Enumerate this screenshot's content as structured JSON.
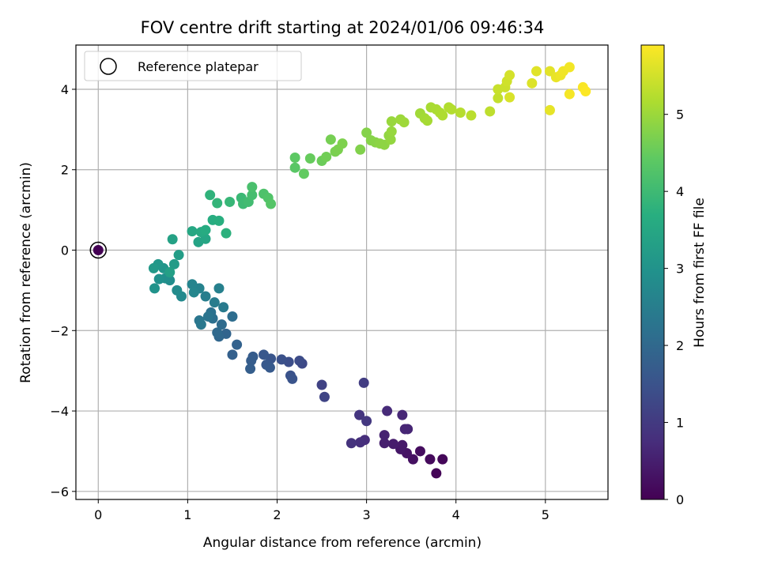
{
  "chart_data": {
    "type": "scatter",
    "title": "FOV centre drift starting at 2024/01/06 09:46:34",
    "xlabel": "Angular distance from reference (arcmin)",
    "ylabel": "Rotation from reference (arcmin)",
    "xlim": [
      -0.25,
      5.7
    ],
    "ylim": [
      -6.2,
      5.1
    ],
    "xticks": [
      "0",
      "1",
      "2",
      "3",
      "4",
      "5"
    ],
    "yticks": [
      "−6",
      "−4",
      "−2",
      "0",
      "2",
      "4"
    ],
    "grid": true,
    "legend": {
      "placement": "top-left",
      "label": "Reference platepar"
    },
    "reference_point": {
      "x": 0,
      "y": 0,
      "hours": 0
    },
    "colorbar": {
      "label": "Hours from first FF file",
      "range": [
        0,
        5.9
      ],
      "ticks": [
        "0",
        "1",
        "2",
        "3",
        "4",
        "5"
      ],
      "colormap": "viridis"
    },
    "points": [
      [
        3.78,
        -5.55,
        0.05
      ],
      [
        3.85,
        -5.2,
        0.1
      ],
      [
        3.71,
        -5.2,
        0.15
      ],
      [
        3.6,
        -5.0,
        0.2
      ],
      [
        3.52,
        -5.2,
        0.25
      ],
      [
        3.45,
        -5.05,
        0.3
      ],
      [
        3.38,
        -4.95,
        0.35
      ],
      [
        3.4,
        -4.85,
        0.4
      ],
      [
        3.3,
        -4.82,
        0.45
      ],
      [
        3.2,
        -4.8,
        0.5
      ],
      [
        3.2,
        -4.6,
        0.55
      ],
      [
        3.46,
        -4.45,
        0.6
      ],
      [
        3.43,
        -4.45,
        0.62
      ],
      [
        3.4,
        -4.1,
        0.65
      ],
      [
        3.23,
        -4.0,
        0.7
      ],
      [
        2.98,
        -4.72,
        0.75
      ],
      [
        2.93,
        -4.78,
        0.8
      ],
      [
        2.83,
        -4.8,
        0.85
      ],
      [
        2.92,
        -4.1,
        0.9
      ],
      [
        3.0,
        -4.25,
        0.95
      ],
      [
        2.97,
        -3.3,
        1.05
      ],
      [
        2.5,
        -3.35,
        1.15
      ],
      [
        2.53,
        -3.65,
        1.2
      ],
      [
        2.28,
        -2.82,
        1.3
      ],
      [
        2.25,
        -2.75,
        1.35
      ],
      [
        2.13,
        -2.78,
        1.4
      ],
      [
        2.05,
        -2.72,
        1.45
      ],
      [
        2.15,
        -3.12,
        1.5
      ],
      [
        2.17,
        -3.2,
        1.52
      ],
      [
        1.93,
        -2.7,
        1.55
      ],
      [
        1.85,
        -2.6,
        1.6
      ],
      [
        1.88,
        -2.85,
        1.63
      ],
      [
        1.92,
        -2.92,
        1.65
      ],
      [
        1.73,
        -2.65,
        1.7
      ],
      [
        1.71,
        -2.75,
        1.72
      ],
      [
        1.7,
        -2.95,
        1.75
      ],
      [
        1.5,
        -2.6,
        1.8
      ],
      [
        1.55,
        -2.35,
        1.85
      ],
      [
        1.43,
        -2.08,
        1.9
      ],
      [
        1.35,
        -2.15,
        1.95
      ],
      [
        1.33,
        -2.05,
        2.0
      ],
      [
        1.38,
        -1.85,
        2.05
      ],
      [
        1.5,
        -1.65,
        2.1
      ],
      [
        1.28,
        -1.7,
        2.15
      ],
      [
        1.26,
        -1.55,
        2.2
      ],
      [
        1.23,
        -1.65,
        2.25
      ],
      [
        1.13,
        -1.75,
        2.3
      ],
      [
        1.15,
        -1.85,
        2.35
      ],
      [
        1.4,
        -1.42,
        2.4
      ],
      [
        1.3,
        -1.3,
        2.45
      ],
      [
        1.2,
        -1.15,
        2.5
      ],
      [
        1.35,
        -0.95,
        2.55
      ],
      [
        1.13,
        -0.95,
        2.6
      ],
      [
        1.05,
        -0.85,
        2.65
      ],
      [
        1.07,
        -1.05,
        2.7
      ],
      [
        0.93,
        -1.15,
        2.75
      ],
      [
        0.88,
        -1.0,
        2.8
      ],
      [
        0.8,
        -0.75,
        2.85
      ],
      [
        0.75,
        -0.7,
        2.9
      ],
      [
        0.68,
        -0.72,
        2.95
      ],
      [
        0.63,
        -0.95,
        3.0
      ],
      [
        0.73,
        -0.45,
        3.05
      ],
      [
        0.67,
        -0.35,
        3.1
      ],
      [
        0.62,
        -0.45,
        3.15
      ],
      [
        0.85,
        -0.35,
        3.2
      ],
      [
        0.9,
        -0.12,
        3.25
      ],
      [
        0.8,
        -0.55,
        3.3
      ],
      [
        0.83,
        0.27,
        3.35
      ],
      [
        1.12,
        0.2,
        3.4
      ],
      [
        1.2,
        0.28,
        3.45
      ],
      [
        1.05,
        0.47,
        3.5
      ],
      [
        1.15,
        0.45,
        3.55
      ],
      [
        1.2,
        0.5,
        3.6
      ],
      [
        1.28,
        0.75,
        3.65
      ],
      [
        1.35,
        0.73,
        3.7
      ],
      [
        1.43,
        0.42,
        3.75
      ],
      [
        1.25,
        1.37,
        3.8
      ],
      [
        1.33,
        1.17,
        3.85
      ],
      [
        1.47,
        1.2,
        3.9
      ],
      [
        1.6,
        1.3,
        3.95
      ],
      [
        1.62,
        1.15,
        4.0
      ],
      [
        1.68,
        1.2,
        4.05
      ],
      [
        1.72,
        1.37,
        4.1
      ],
      [
        1.72,
        1.57,
        4.15
      ],
      [
        1.85,
        1.4,
        4.2
      ],
      [
        1.9,
        1.3,
        4.25
      ],
      [
        1.93,
        1.15,
        4.3
      ],
      [
        2.2,
        2.05,
        4.35
      ],
      [
        2.2,
        2.3,
        4.4
      ],
      [
        2.3,
        1.9,
        4.45
      ],
      [
        2.37,
        2.28,
        4.5
      ],
      [
        2.5,
        2.22,
        4.55
      ],
      [
        2.55,
        2.32,
        4.6
      ],
      [
        2.6,
        2.75,
        4.65
      ],
      [
        2.65,
        2.45,
        4.68
      ],
      [
        2.68,
        2.5,
        4.7
      ],
      [
        2.73,
        2.65,
        4.72
      ],
      [
        2.93,
        2.5,
        4.75
      ],
      [
        3.0,
        2.92,
        4.78
      ],
      [
        3.05,
        2.73,
        4.8
      ],
      [
        3.1,
        2.68,
        4.82
      ],
      [
        3.15,
        2.65,
        4.85
      ],
      [
        3.2,
        2.62,
        4.87
      ],
      [
        3.25,
        2.85,
        4.9
      ],
      [
        3.27,
        2.75,
        4.92
      ],
      [
        3.28,
        2.95,
        4.95
      ],
      [
        3.28,
        3.2,
        4.97
      ],
      [
        3.38,
        3.25,
        5.0
      ],
      [
        3.42,
        3.18,
        5.02
      ],
      [
        3.6,
        3.4,
        5.05
      ],
      [
        3.65,
        3.28,
        5.07
      ],
      [
        3.68,
        3.22,
        5.1
      ],
      [
        3.72,
        3.55,
        5.12
      ],
      [
        3.78,
        3.5,
        5.14
      ],
      [
        3.82,
        3.42,
        5.16
      ],
      [
        3.85,
        3.35,
        5.18
      ],
      [
        3.92,
        3.55,
        5.2
      ],
      [
        3.95,
        3.5,
        5.22
      ],
      [
        4.05,
        3.42,
        5.25
      ],
      [
        4.17,
        3.35,
        5.28
      ],
      [
        4.38,
        3.45,
        5.32
      ],
      [
        4.47,
        3.78,
        5.36
      ],
      [
        4.47,
        4.0,
        5.4
      ],
      [
        4.55,
        4.05,
        5.44
      ],
      [
        4.57,
        4.2,
        5.48
      ],
      [
        4.6,
        4.35,
        5.52
      ],
      [
        4.6,
        3.8,
        5.56
      ],
      [
        4.85,
        4.15,
        5.6
      ],
      [
        4.9,
        4.45,
        5.63
      ],
      [
        5.05,
        4.45,
        5.66
      ],
      [
        5.05,
        3.48,
        5.69
      ],
      [
        5.12,
        4.3,
        5.72
      ],
      [
        5.17,
        4.35,
        5.75
      ],
      [
        5.2,
        4.45,
        5.78
      ],
      [
        5.27,
        4.55,
        5.8
      ],
      [
        5.27,
        3.88,
        5.83
      ],
      [
        5.42,
        4.05,
        5.86
      ],
      [
        5.45,
        3.95,
        5.89
      ]
    ]
  }
}
